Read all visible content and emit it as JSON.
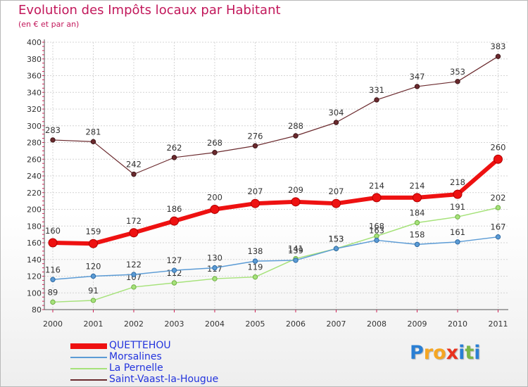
{
  "title": "Evolution des Impôts locaux par Habitant",
  "subtitle": "(en € et par an)",
  "brand": {
    "letters": [
      {
        "ch": "P",
        "color": "#2a7fd4"
      },
      {
        "ch": "r",
        "color": "#f5a623"
      },
      {
        "ch": "o",
        "color": "#f5a623"
      },
      {
        "ch": "x",
        "color": "#e8321e"
      },
      {
        "ch": "i",
        "color": "#2a7fd4"
      },
      {
        "ch": "t",
        "color": "#7ab648"
      },
      {
        "ch": "i",
        "color": "#2a7fd4"
      }
    ]
  },
  "chart_data": {
    "type": "line",
    "title": "Evolution des Impôts locaux par Habitant",
    "subtitle": "(en € et par an)",
    "xlabel": "",
    "ylabel": "",
    "x": [
      "2000",
      "2001",
      "2002",
      "2003",
      "2004",
      "2005",
      "2006",
      "2007",
      "2008",
      "2009",
      "2010",
      "2011"
    ],
    "ylim": [
      80,
      400
    ],
    "yticks": [
      80,
      100,
      120,
      140,
      160,
      180,
      200,
      220,
      240,
      260,
      280,
      300,
      320,
      340,
      360,
      380,
      400
    ],
    "grid": true,
    "legend_position": "bottom-left",
    "series": [
      {
        "name": "QUETTEHOU",
        "color": "#ee1111",
        "values": [
          160,
          159,
          172,
          186,
          200,
          207,
          209,
          207,
          214,
          214,
          218,
          260
        ]
      },
      {
        "name": "Morsalines",
        "color": "#5b9bd5",
        "values": [
          116,
          120,
          122,
          127,
          130,
          138,
          139,
          153,
          163,
          158,
          161,
          167
        ]
      },
      {
        "name": "La Pernelle",
        "color": "#a6e27a",
        "values": [
          89,
          91,
          107,
          112,
          117,
          119,
          141,
          153,
          168,
          184,
          191,
          202
        ]
      },
      {
        "name": "Saint-Vaast-la-Hougue",
        "color": "#6b2a2e",
        "values": [
          283,
          281,
          242,
          262,
          268,
          276,
          288,
          304,
          331,
          347,
          353,
          383
        ]
      }
    ]
  }
}
